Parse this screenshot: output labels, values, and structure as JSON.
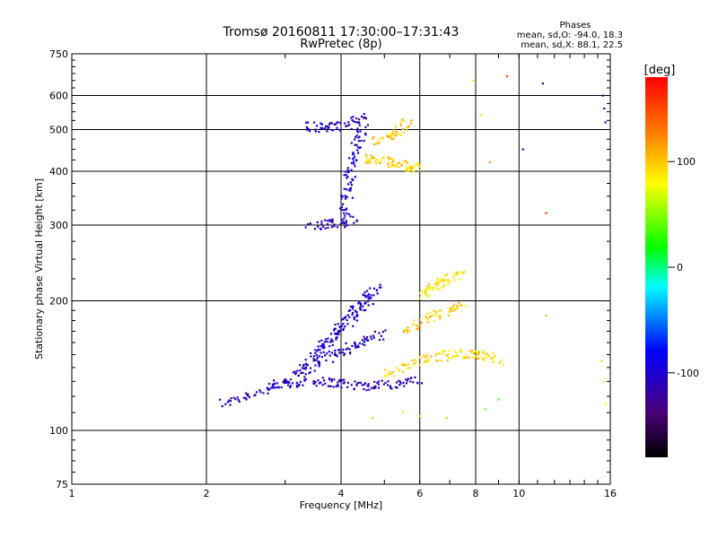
{
  "chart_data": {
    "type": "scatter",
    "title": "Tromsø 20160811 17:30:00–17:31:43",
    "subtitle": "RwPretec (8p)",
    "xlabel": "Frequency [MHz]",
    "ylabel": "Stationary phase Virtual Height [km]",
    "x_scale": "log",
    "y_scale": "log",
    "xlim": [
      1,
      16
    ],
    "ylim": [
      75,
      750
    ],
    "x_ticks": [
      1,
      2,
      4,
      6,
      8,
      10,
      16
    ],
    "y_ticks": [
      75,
      100,
      200,
      300,
      400,
      500,
      600,
      750
    ],
    "grid": true,
    "colorbar": {
      "label": "[deg]",
      "range": [
        -180,
        180
      ],
      "ticks": [
        -100,
        0,
        100
      ]
    },
    "phases_box": {
      "heading": "Phases",
      "line1": "mean, sd,O: -94.0, 18.3",
      "line2": "mean, sd,X:  88.1, 22.5"
    },
    "series": [
      {
        "traces": [
          {
            "f": [
              2.15,
              2.4,
              2.7,
              3.0,
              3.3,
              3.6,
              3.9,
              4.2,
              4.6,
              5.0,
              5.5,
              6.0
            ],
            "h": [
              115,
              120,
              124,
              128,
              130,
              130,
              129,
              128,
              127,
              128,
              129,
              131
            ],
            "phase": -110
          },
          {
            "f": [
              2.8,
              3.1,
              3.4,
              3.7,
              4.0,
              4.3,
              4.6,
              5.0
            ],
            "h": [
              125,
              133,
              140,
              147,
              153,
              158,
              163,
              168
            ],
            "phase": -105
          },
          {
            "f": [
              3.2,
              3.5,
              3.8,
              4.1,
              4.4,
              4.7
            ],
            "h": [
              137,
              149,
              162,
              176,
              190,
              205
            ],
            "phase": -100
          },
          {
            "f": [
              3.5,
              3.75,
              4.0,
              4.3,
              4.6,
              4.9
            ],
            "h": [
              150,
              162,
              176,
              192,
              206,
              218
            ],
            "phase": -100
          },
          {
            "f": [
              3.4,
              3.7,
              4.0,
              4.3
            ],
            "h": [
              300,
              302,
              304,
              308
            ],
            "phase": -110
          },
          {
            "f": [
              4.05,
              4.1,
              4.15,
              4.2,
              4.3,
              4.4,
              4.5
            ],
            "h": [
              310,
              340,
              370,
              400,
              440,
              480,
              520
            ],
            "phase": -100
          },
          {
            "f": [
              3.3,
              3.6,
              3.9,
              4.2,
              4.5
            ],
            "h": [
              510,
              505,
              508,
              515,
              540
            ],
            "phase": -105
          },
          {
            "f": [
              4.5,
              4.8,
              5.1,
              5.4,
              5.7,
              6.0
            ],
            "h": [
              430,
              425,
              420,
              415,
              410,
              405
            ],
            "phase": 95
          },
          {
            "f": [
              4.8,
              5.1,
              5.4,
              5.7
            ],
            "h": [
              470,
              480,
              500,
              520
            ],
            "phase": 100
          },
          {
            "f": [
              5.0,
              5.5,
              6.0,
              6.5,
              7.0,
              7.5,
              8.0,
              8.5,
              9.0
            ],
            "h": [
              135,
              140,
              145,
              148,
              150,
              151,
              150,
              148,
              145
            ],
            "phase": 90
          },
          {
            "f": [
              5.5,
              6.0,
              6.5,
              7.0,
              7.5
            ],
            "h": [
              170,
              178,
              185,
              190,
              195
            ],
            "phase": 100
          },
          {
            "f": [
              6.0,
              6.3,
              6.6,
              7.0,
              7.4
            ],
            "h": [
              205,
              212,
              220,
              225,
              230
            ],
            "phase": 85
          }
        ]
      }
    ],
    "scatter_extra": [
      {
        "f": 9.4,
        "h": 665,
        "phase": 150
      },
      {
        "f": 11.3,
        "h": 640,
        "phase": -110
      },
      {
        "f": 15.4,
        "h": 600,
        "phase": -110
      },
      {
        "f": 15.5,
        "h": 560,
        "phase": -100
      },
      {
        "f": 15.6,
        "h": 520,
        "phase": -95
      },
      {
        "f": 8.6,
        "h": 420,
        "phase": 120
      },
      {
        "f": 7.9,
        "h": 650,
        "phase": 90
      },
      {
        "f": 8.2,
        "h": 540,
        "phase": 95
      },
      {
        "f": 10.2,
        "h": 450,
        "phase": -110
      },
      {
        "f": 11.5,
        "h": 320,
        "phase": 160
      },
      {
        "f": 5.5,
        "h": 110,
        "phase": 90
      },
      {
        "f": 6.0,
        "h": 108,
        "phase": 85
      },
      {
        "f": 6.9,
        "h": 107,
        "phase": 100
      },
      {
        "f": 8.4,
        "h": 112,
        "phase": 40
      },
      {
        "f": 9.0,
        "h": 118,
        "phase": 30
      },
      {
        "f": 4.7,
        "h": 107,
        "phase": 100
      },
      {
        "f": 11.5,
        "h": 185,
        "phase": 110
      },
      {
        "f": 15.3,
        "h": 145,
        "phase": 95
      },
      {
        "f": 15.5,
        "h": 130,
        "phase": 90
      },
      {
        "f": 15.6,
        "h": 115,
        "phase": 85
      }
    ]
  }
}
